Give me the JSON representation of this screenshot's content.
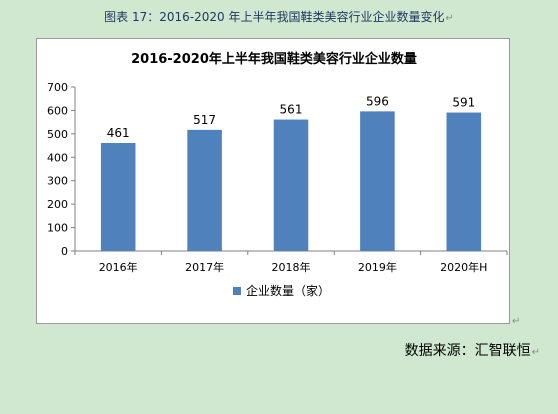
{
  "caption": {
    "text": "图表  17：2016-2020 年上半年我国鞋类美容行业企业数量变化",
    "mark": "↵"
  },
  "source": {
    "text": "数据来源：汇智联恒",
    "mark": "↵"
  },
  "colors": {
    "bar": "#4f81bd",
    "caption_text": "#1f3864",
    "background": "#cfe8cf"
  },
  "chart_data": {
    "type": "bar",
    "title": "2016-2020年上半年我国鞋类美容行业企业数量",
    "categories": [
      "2016年",
      "2017年",
      "2018年",
      "2019年",
      "2020年H"
    ],
    "series": [
      {
        "name": "企业数量（家）",
        "values": [
          461,
          517,
          561,
          596,
          591
        ]
      }
    ],
    "ylim": [
      0,
      700
    ],
    "yticks": [
      0,
      100,
      200,
      300,
      400,
      500,
      600,
      700
    ],
    "xlabel": "",
    "ylabel": "",
    "grid": false,
    "legend": "bottom",
    "data_labels": true
  }
}
